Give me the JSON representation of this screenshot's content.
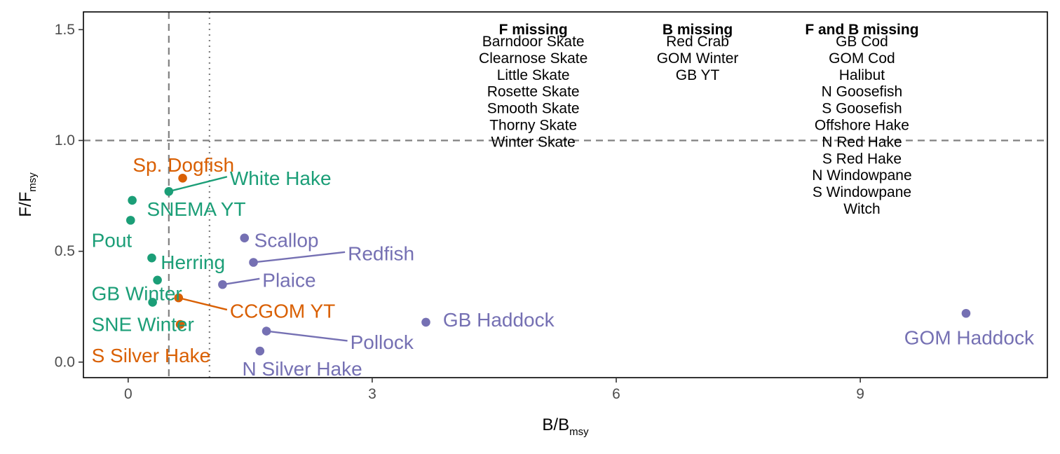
{
  "chart_data": {
    "type": "scatter",
    "title": "",
    "xlabel": {
      "main": "B/B",
      "sub": "msy"
    },
    "ylabel": {
      "main": "F/F",
      "sub": "msy"
    },
    "xlim": [
      -0.55,
      11.3
    ],
    "ylim": [
      -0.07,
      1.58
    ],
    "x_ticks": [
      0,
      3,
      6,
      9
    ],
    "y_ticks": [
      0.0,
      0.5,
      1.0,
      1.5
    ],
    "y_tick_labels": [
      "0.0",
      "0.5",
      "1.0",
      "1.5"
    ],
    "grid": false,
    "legend": "none",
    "reference_lines": [
      {
        "axis": "y",
        "value": 1.0,
        "style": "dashed"
      },
      {
        "axis": "x",
        "value": 0.5,
        "style": "dashed"
      },
      {
        "axis": "x",
        "value": 1.0,
        "style": "dotted"
      }
    ],
    "colors": {
      "green": "#1b9e77",
      "orange": "#d95f02",
      "purple": "#7570b3",
      "ref_line": "#808080"
    },
    "points": [
      {
        "label": "Sp. Dogfish",
        "x": 0.67,
        "y": 0.83,
        "color": "#d95f02",
        "label_x": 0.68,
        "label_y": 0.89,
        "anchor": "middle",
        "leader": false
      },
      {
        "label": "White Hake",
        "x": 0.5,
        "y": 0.77,
        "color": "#1b9e77",
        "label_x": 1.25,
        "label_y": 0.83,
        "anchor": "start",
        "leader": true
      },
      {
        "label": "SNEMA YT",
        "x": 0.05,
        "y": 0.73,
        "color": "#1b9e77",
        "label_x": 0.23,
        "label_y": 0.69,
        "anchor": "start",
        "leader": false
      },
      {
        "label": "Pout",
        "x": 0.03,
        "y": 0.64,
        "color": "#1b9e77",
        "label_x": -0.45,
        "label_y": 0.55,
        "anchor": "start",
        "leader": false
      },
      {
        "label": "Scallop",
        "x": 1.43,
        "y": 0.56,
        "color": "#7570b3",
        "label_x": 1.55,
        "label_y": 0.55,
        "anchor": "start",
        "leader": false
      },
      {
        "label": "Redfish",
        "x": 1.54,
        "y": 0.45,
        "color": "#7570b3",
        "label_x": 2.7,
        "label_y": 0.49,
        "anchor": "start",
        "leader": true
      },
      {
        "label": "Herring",
        "x": 0.29,
        "y": 0.47,
        "color": "#1b9e77",
        "label_x": 0.4,
        "label_y": 0.45,
        "anchor": "start",
        "leader": false
      },
      {
        "label": "Plaice",
        "x": 1.16,
        "y": 0.35,
        "color": "#7570b3",
        "label_x": 1.65,
        "label_y": 0.37,
        "anchor": "start",
        "leader": true
      },
      {
        "label": "GB Winter",
        "x": 0.36,
        "y": 0.37,
        "color": "#1b9e77",
        "label_x": -0.45,
        "label_y": 0.31,
        "anchor": "start",
        "leader": false
      },
      {
        "label": "CCGOM YT",
        "x": 0.62,
        "y": 0.29,
        "color": "#d95f02",
        "label_x": 1.25,
        "label_y": 0.23,
        "anchor": "start",
        "leader": true
      },
      {
        "label": "SNE Winter",
        "x": 0.3,
        "y": 0.27,
        "color": "#1b9e77",
        "label_x": -0.45,
        "label_y": 0.17,
        "anchor": "start",
        "leader": false
      },
      {
        "label": "GB Haddock",
        "x": 3.66,
        "y": 0.18,
        "color": "#7570b3",
        "label_x": 3.87,
        "label_y": 0.19,
        "anchor": "start",
        "leader": false
      },
      {
        "label": "S Silver Hake",
        "x": 0.64,
        "y": 0.17,
        "color": "#d95f02",
        "label_x": -0.45,
        "label_y": 0.03,
        "anchor": "start",
        "leader": false
      },
      {
        "label": "Pollock",
        "x": 1.7,
        "y": 0.14,
        "color": "#7570b3",
        "label_x": 2.73,
        "label_y": 0.09,
        "anchor": "start",
        "leader": true
      },
      {
        "label": "N Silver Hake",
        "x": 1.62,
        "y": 0.05,
        "color": "#7570b3",
        "label_x": 2.14,
        "label_y": -0.03,
        "anchor": "middle",
        "leader": false
      },
      {
        "label": "GOM Haddock",
        "x": 10.3,
        "y": 0.22,
        "color": "#7570b3",
        "label_x": 9.54,
        "label_y": 0.11,
        "anchor": "start",
        "leader": false
      }
    ],
    "missing_tables": [
      {
        "header": "F missing",
        "x": 4.98,
        "items": [
          "Barndoor Skate",
          "Clearnose Skate",
          "Little Skate",
          "Rosette Skate",
          "Smooth Skate",
          "Thorny Skate",
          "Winter Skate"
        ]
      },
      {
        "header": "B missing",
        "x": 7.0,
        "items": [
          "Red Crab",
          "GOM Winter",
          "GB YT"
        ]
      },
      {
        "header": "F and B missing",
        "x": 9.02,
        "items": [
          "GB Cod",
          "GOM Cod",
          "Halibut",
          "N Goosefish",
          "S Goosefish",
          "Offshore Hake",
          "N Red Hake",
          "S Red Hake",
          "N Windowpane",
          "S Windowpane",
          "Witch"
        ]
      }
    ]
  }
}
